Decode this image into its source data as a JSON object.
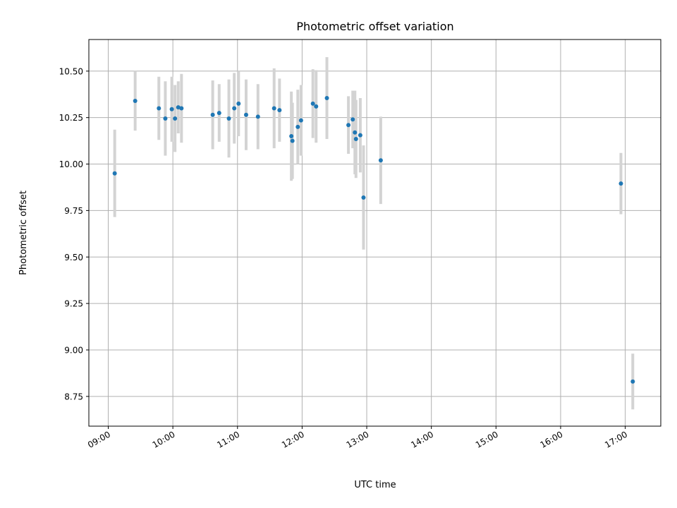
{
  "chart_data": {
    "type": "scatter",
    "title": "Photometric offset variation",
    "xlabel": "UTC time",
    "ylabel": "Photometric offset",
    "x_ticks": [
      "09:00",
      "10:00",
      "11:00",
      "12:00",
      "13:00",
      "14:00",
      "15:00",
      "16:00",
      "17:00"
    ],
    "y_ticks": [
      "8.75",
      "9.00",
      "9.25",
      "9.50",
      "9.75",
      "10.00",
      "10.25",
      "10.50"
    ],
    "xlim": [
      "08:42",
      "17:33"
    ],
    "ylim": [
      8.59,
      10.67
    ],
    "grid": true,
    "colors": {
      "point": "#1f77b4",
      "errorbar": "#d3d3d3",
      "grid": "#b0b0b0"
    },
    "points": [
      {
        "x": "09:06",
        "y": 9.95,
        "err": 0.235
      },
      {
        "x": "09:25",
        "y": 10.34,
        "err": 0.16
      },
      {
        "x": "09:47",
        "y": 10.3,
        "err": 0.17
      },
      {
        "x": "09:53",
        "y": 10.245,
        "err": 0.2
      },
      {
        "x": "09:59",
        "y": 10.295,
        "err": 0.175
      },
      {
        "x": "10:02",
        "y": 10.245,
        "err": 0.18
      },
      {
        "x": "10:05",
        "y": 10.305,
        "err": 0.14
      },
      {
        "x": "10:08",
        "y": 10.3,
        "err": 0.185
      },
      {
        "x": "10:37",
        "y": 10.265,
        "err": 0.185
      },
      {
        "x": "10:43",
        "y": 10.275,
        "err": 0.155
      },
      {
        "x": "10:52",
        "y": 10.245,
        "err": 0.21
      },
      {
        "x": "10:57",
        "y": 10.3,
        "err": 0.19
      },
      {
        "x": "11:01",
        "y": 10.325,
        "err": 0.175
      },
      {
        "x": "11:08",
        "y": 10.265,
        "err": 0.19
      },
      {
        "x": "11:19",
        "y": 10.255,
        "err": 0.175
      },
      {
        "x": "11:34",
        "y": 10.3,
        "err": 0.215
      },
      {
        "x": "11:39",
        "y": 10.29,
        "err": 0.17
      },
      {
        "x": "11:50",
        "y": 10.15,
        "err": 0.24
      },
      {
        "x": "11:51",
        "y": 10.125,
        "err": 0.205
      },
      {
        "x": "11:56",
        "y": 10.2,
        "err": 0.2
      },
      {
        "x": "11:59",
        "y": 10.235,
        "err": 0.19
      },
      {
        "x": "12:10",
        "y": 10.325,
        "err": 0.185
      },
      {
        "x": "12:13",
        "y": 10.31,
        "err": 0.195
      },
      {
        "x": "12:23",
        "y": 10.355,
        "err": 0.22
      },
      {
        "x": "12:43",
        "y": 10.21,
        "err": 0.155
      },
      {
        "x": "12:47",
        "y": 10.24,
        "err": 0.155
      },
      {
        "x": "12:49",
        "y": 10.17,
        "err": 0.225
      },
      {
        "x": "12:50",
        "y": 10.135,
        "err": 0.21
      },
      {
        "x": "12:54",
        "y": 10.155,
        "err": 0.2
      },
      {
        "x": "12:57",
        "y": 9.82,
        "err": 0.28
      },
      {
        "x": "13:13",
        "y": 10.02,
        "err": 0.235
      },
      {
        "x": "16:56",
        "y": 9.895,
        "err": 0.165
      },
      {
        "x": "17:07",
        "y": 8.83,
        "err": 0.15
      }
    ]
  }
}
